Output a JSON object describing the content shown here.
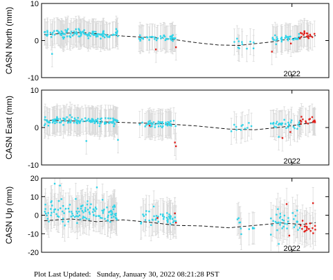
{
  "footer": {
    "label": "Plot Last Updated:",
    "timestamp": "Sunday, January 30, 2022 08:21:28 PST"
  },
  "colors": {
    "points": "#2fd3e8",
    "recent_points": "#e0201b",
    "error_bars": "#d9d9d9",
    "model": "#000000",
    "frame": "#000000"
  },
  "chart_data": [
    {
      "type": "scatter",
      "name": "north",
      "ylabel": "CASN North (mm)",
      "ylim": [
        -10,
        10
      ],
      "yticks": [
        -10,
        0,
        10
      ],
      "xlim": [
        2017.25,
        2022.7
      ],
      "xticks": [
        {
          "value": 2022.0,
          "label": "2022"
        }
      ],
      "error_bar_mm": 3.5,
      "model_curve": {
        "style": "dashed",
        "x": [
          2017.3,
          2018.0,
          2018.8,
          2019.6,
          2020.2,
          2020.6,
          2021.0,
          2021.6,
          2022.0,
          2022.45
        ],
        "y": [
          1.6,
          2.2,
          1.2,
          0.6,
          -0.6,
          -1.2,
          -1.3,
          -0.4,
          0.5,
          1.3
        ]
      },
      "series": [
        {
          "segments": [
            {
              "x": [
                2017.3,
                2018.7
              ],
              "center": 1.8,
              "spread": 1.0,
              "n": 120
            },
            {
              "x": [
                2019.1,
                2019.8
              ],
              "center": 0.8,
              "spread": 0.7,
              "n": 45
            },
            {
              "x": [
                2020.9,
                2021.3
              ],
              "center": -0.8,
              "spread": 1.1,
              "n": 10
            },
            {
              "x": [
                2021.6,
                2022.15
              ],
              "center": 0.6,
              "spread": 1.0,
              "n": 35
            }
          ],
          "outliers": [
            [
              2017.45,
              -3.6
            ],
            [
              2021.0,
              -2.1
            ],
            [
              2021.7,
              -1.0
            ]
          ]
        },
        {
          "segments": [
            {
              "x": [
                2022.15,
                2022.45
              ],
              "center": 1.4,
              "spread": 0.9,
              "n": 18
            }
          ],
          "outliers": [
            [
              2019.42,
              -2.4
            ],
            [
              2019.8,
              -1.8
            ],
            [
              2021.62,
              -3.0
            ],
            [
              2021.98,
              -0.8
            ]
          ]
        }
      ]
    },
    {
      "type": "scatter",
      "name": "east",
      "ylabel": "CASN East (mm)",
      "ylim": [
        -10,
        10
      ],
      "yticks": [
        -10,
        0,
        10
      ],
      "xlim": [
        2017.25,
        2022.7
      ],
      "xticks": [
        {
          "value": 2022.0,
          "label": "2022"
        }
      ],
      "error_bar_mm": 3.5,
      "model_curve": {
        "style": "dashed",
        "x": [
          2017.3,
          2018.2,
          2018.9,
          2019.6,
          2020.2,
          2020.8,
          2021.3,
          2021.8,
          2022.2,
          2022.45
        ],
        "y": [
          2.0,
          1.6,
          1.3,
          1.0,
          0.4,
          -0.4,
          -0.6,
          0.1,
          0.9,
          1.5
        ]
      },
      "series": [
        {
          "segments": [
            {
              "x": [
                2017.3,
                2018.7
              ],
              "center": 1.8,
              "spread": 1.0,
              "n": 120
            },
            {
              "x": [
                2019.1,
                2019.8
              ],
              "center": 1.0,
              "spread": 0.8,
              "n": 45
            },
            {
              "x": [
                2020.9,
                2021.3
              ],
              "center": 0.2,
              "spread": 1.0,
              "n": 10
            },
            {
              "x": [
                2021.6,
                2022.15
              ],
              "center": 0.8,
              "spread": 1.0,
              "n": 35
            }
          ],
          "outliers": [
            [
              2018.1,
              -3.6
            ],
            [
              2018.7,
              -3.3
            ],
            [
              2020.85,
              -1.0
            ],
            [
              2021.75,
              -2.5
            ]
          ]
        },
        {
          "segments": [
            {
              "x": [
                2022.15,
                2022.45
              ],
              "center": 1.8,
              "spread": 0.9,
              "n": 18
            }
          ],
          "outliers": [
            [
              2019.3,
              0.5
            ],
            [
              2019.78,
              -4.0
            ],
            [
              2019.8,
              -5.0
            ],
            [
              2021.97,
              -1.2
            ],
            [
              2021.82,
              -2.8
            ]
          ]
        }
      ]
    },
    {
      "type": "scatter",
      "name": "up",
      "ylabel": "CASN Up (mm)",
      "ylim": [
        -20,
        20
      ],
      "yticks": [
        -20,
        -10,
        0,
        10,
        20
      ],
      "xlim": [
        2017.25,
        2022.7
      ],
      "xticks": [
        {
          "value": 2022.0,
          "label": "2022"
        }
      ],
      "error_bar_mm": 8.5,
      "model_curve": {
        "style": "dashed",
        "x": [
          2017.3,
          2017.8,
          2018.3,
          2018.8,
          2019.3,
          2019.8,
          2020.3,
          2020.8,
          2021.3,
          2021.8,
          2022.2,
          2022.45
        ],
        "y": [
          -3.0,
          -2.0,
          -3.5,
          -2.5,
          -3.8,
          -5.5,
          -5.8,
          -6.8,
          -5.5,
          -4.2,
          -5.0,
          -4.0
        ]
      },
      "series": [
        {
          "segments": [
            {
              "x": [
                2017.3,
                2018.7
              ],
              "center": 1.0,
              "spread": 5.5,
              "n": 120
            },
            {
              "x": [
                2019.1,
                2019.8
              ],
              "center": -1.0,
              "spread": 4.0,
              "n": 45
            },
            {
              "x": [
                2020.9,
                2021.3
              ],
              "center": -6.0,
              "spread": 4.0,
              "n": 10
            },
            {
              "x": [
                2021.6,
                2022.15
              ],
              "center": -3.0,
              "spread": 5.0,
              "n": 35
            }
          ],
          "outliers": [
            [
              2017.5,
              17.0
            ],
            [
              2017.6,
              16.0
            ],
            [
              2018.3,
              15.0
            ],
            [
              2021.75,
              -15.5
            ],
            [
              2021.6,
              -10.5
            ]
          ]
        },
        {
          "segments": [
            {
              "x": [
                2022.15,
                2022.45
              ],
              "center": -7.0,
              "spread": 3.5,
              "n": 18
            }
          ],
          "outliers": [
            [
              2019.45,
              -1.5
            ],
            [
              2019.78,
              1.0
            ],
            [
              2019.8,
              -4.0
            ],
            [
              2021.9,
              6.0
            ],
            [
              2021.95,
              -11.0
            ],
            [
              2022.4,
              6.5
            ]
          ]
        }
      ]
    }
  ]
}
